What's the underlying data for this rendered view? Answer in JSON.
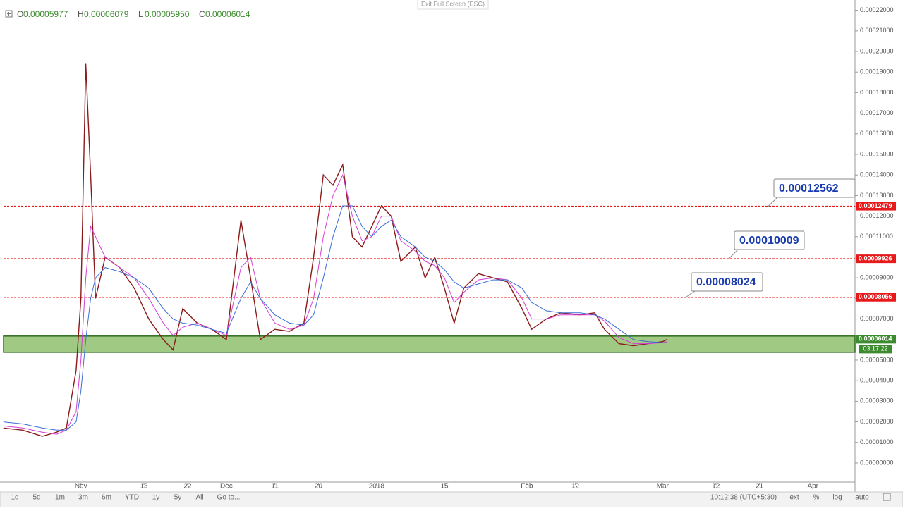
{
  "chart_data": {
    "type": "line",
    "header": {
      "button": "Exit Full Screen (ESC)",
      "ohlc": [
        {
          "key": "O",
          "value": "0.00005977"
        },
        {
          "key": "H",
          "value": "0.00006079"
        },
        {
          "key": "L",
          "value": "0.00005950"
        },
        {
          "key": "C",
          "value": "0.00006014"
        }
      ]
    },
    "x": [
      -16,
      -12,
      -8,
      -5,
      -3,
      -1,
      0,
      1,
      2,
      3,
      5,
      8,
      11,
      14,
      17,
      19,
      21,
      24,
      27,
      30,
      33,
      35,
      37,
      40,
      43,
      46,
      48,
      50,
      52,
      54,
      56,
      58,
      60,
      62,
      64,
      66,
      69,
      71,
      73,
      75,
      77,
      79,
      82,
      85,
      88,
      91,
      93,
      96,
      99,
      103,
      106,
      108,
      111,
      114,
      117,
      120,
      121
    ],
    "series": [
      {
        "color": "#8b1a1a",
        "values": [
          1.7e-05,
          1.6e-05,
          1.3e-05,
          1.5e-05,
          1.7e-05,
          4.5e-05,
          8e-05,
          0.000194,
          0.00014,
          8e-05,
          0.0001,
          9.5e-05,
          8.5e-05,
          7e-05,
          6e-05,
          5.5e-05,
          7.5e-05,
          6.8e-05,
          6.5e-05,
          6e-05,
          0.000118,
          9e-05,
          6e-05,
          6.5e-05,
          6.4e-05,
          6.8e-05,
          0.0001,
          0.00014,
          0.000135,
          0.000145,
          0.00011,
          0.000105,
          0.000115,
          0.000125,
          0.00012,
          9.8e-05,
          0.000105,
          9e-05,
          0.0001,
          8.5e-05,
          6.8e-05,
          8.5e-05,
          9.2e-05,
          9e-05,
          8.8e-05,
          7.5e-05,
          6.5e-05,
          7e-05,
          7.3e-05,
          7.2e-05,
          7.3e-05,
          6.5e-05,
          5.8e-05,
          5.7e-05,
          5.8e-05,
          5.9e-05,
          6.014e-05
        ]
      },
      {
        "color": "#d63bd6",
        "values": [
          1.8e-05,
          1.7e-05,
          1.5e-05,
          1.4e-05,
          1.6e-05,
          2.5e-05,
          5e-05,
          9e-05,
          0.000115,
          0.00011,
          0.0001,
          9.5e-05,
          9e-05,
          8e-05,
          6.8e-05,
          6.2e-05,
          6.6e-05,
          6.8e-05,
          6.5e-05,
          6.2e-05,
          9.5e-05,
          0.0001,
          8e-05,
          6.8e-05,
          6.5e-05,
          6.7e-05,
          8e-05,
          0.00011,
          0.00013,
          0.00014,
          0.00012,
          0.000108,
          0.00011,
          0.00012,
          0.00012,
          0.000108,
          0.000103,
          9.8e-05,
          9.6e-05,
          9e-05,
          7.8e-05,
          8.3e-05,
          8.9e-05,
          9e-05,
          8.9e-05,
          8e-05,
          7e-05,
          7e-05,
          7.2e-05,
          7.2e-05,
          7.2e-05,
          6.9e-05,
          6.1e-05,
          5.8e-05,
          5.8e-05,
          5.85e-05,
          5.9e-05
        ]
      },
      {
        "color": "#3b6fd6",
        "values": [
          2e-05,
          1.9e-05,
          1.7e-05,
          1.6e-05,
          1.6e-05,
          2e-05,
          3.5e-05,
          6e-05,
          8e-05,
          9e-05,
          9.5e-05,
          9.3e-05,
          9e-05,
          8.5e-05,
          7.5e-05,
          7e-05,
          6.8e-05,
          6.7e-05,
          6.5e-05,
          6.3e-05,
          8e-05,
          8.8e-05,
          8e-05,
          7.2e-05,
          6.8e-05,
          6.7e-05,
          7.2e-05,
          9e-05,
          0.00011,
          0.000125,
          0.000125,
          0.000115,
          0.00011,
          0.000115,
          0.000118,
          0.00011,
          0.000105,
          0.0001,
          9.8e-05,
          9.4e-05,
          8.8e-05,
          8.5e-05,
          8.7e-05,
          8.9e-05,
          8.9e-05,
          8.5e-05,
          7.8e-05,
          7.4e-05,
          7.3e-05,
          7.3e-05,
          7.2e-05,
          7e-05,
          6.5e-05,
          6e-05,
          5.9e-05,
          5.85e-05,
          5.85e-05
        ]
      }
    ],
    "xlim": [
      -16.7,
      159.7
    ],
    "xticks": [
      {
        "value": 0,
        "label": "Nov"
      },
      13,
      22,
      {
        "value": 30,
        "label": "Dec"
      },
      {
        "value": 40,
        "label": "11"
      },
      {
        "value": 49,
        "label": "20"
      },
      {
        "value": 61,
        "label": "2018"
      },
      {
        "value": 75,
        "label": "15"
      },
      {
        "value": 92,
        "label": "Feb"
      },
      {
        "value": 102,
        "label": "12"
      },
      {
        "value": 120,
        "label": "Mar"
      },
      {
        "value": 131,
        "label": "12"
      },
      {
        "value": 140,
        "label": "21"
      },
      {
        "value": 151,
        "label": "Apr"
      }
    ],
    "ylim": [
      -9.6e-06,
      0.000225
    ],
    "yticks": [
      {
        "value": 0.00022,
        "label": "0.00022000"
      },
      {
        "value": 0.00021,
        "label": "0.00021000"
      },
      {
        "value": 0.0002,
        "label": "0.00020000"
      },
      {
        "value": 0.00019,
        "label": "0.00019000"
      },
      {
        "value": 0.00018,
        "label": "0.00018000"
      },
      {
        "value": 0.00017,
        "label": "0.00017000"
      },
      {
        "value": 0.00016,
        "label": "0.00016000"
      },
      {
        "value": 0.00015,
        "label": "0.00015000"
      },
      {
        "value": 0.00014,
        "label": "0.00014000"
      },
      {
        "value": 0.00013,
        "label": "0.00013000"
      },
      {
        "value": 0.00012,
        "label": "0.00012000"
      },
      {
        "value": 0.00011,
        "label": "0.00011000"
      },
      {
        "value": 0.0001,
        "label": "0.00010000"
      },
      {
        "value": 9e-05,
        "label": "0.00009000"
      },
      {
        "value": 8e-05,
        "label": "0.00008000"
      },
      {
        "value": 7e-05,
        "label": "0.00007000"
      },
      {
        "value": 6e-05,
        "label": "0.00006000"
      },
      {
        "value": 5e-05,
        "label": "0.00005000"
      },
      {
        "value": 4e-05,
        "label": "0.00004000"
      },
      {
        "value": 3e-05,
        "label": "0.00003000"
      },
      {
        "value": 2e-05,
        "label": "0.00002000"
      },
      {
        "value": 1e-05,
        "label": "0.00001000"
      },
      {
        "value": 0,
        "label": "0.00000000"
      }
    ],
    "hlines": [
      0.00012479,
      9.926e-05,
      8.056e-05
    ],
    "hline_color": "#e8191a",
    "annotations": [
      "0.00012562",
      "0.00010009",
      "0.00008024"
    ],
    "zone": [
      5.38e-05,
      6.17e-05
    ],
    "zone_color": "#8fbf6e",
    "last_price": 6.014e-05,
    "countdown": "03:17:22",
    "toolbar": {
      "ranges": [
        "1d",
        "5d",
        "1m",
        "3m",
        "6m",
        "YTD",
        "1y",
        "5y",
        "All",
        "Go to..."
      ],
      "clock": "10:12:38 (UTC+5:30)",
      "options": [
        "ext",
        "%",
        "log",
        "auto"
      ]
    }
  }
}
